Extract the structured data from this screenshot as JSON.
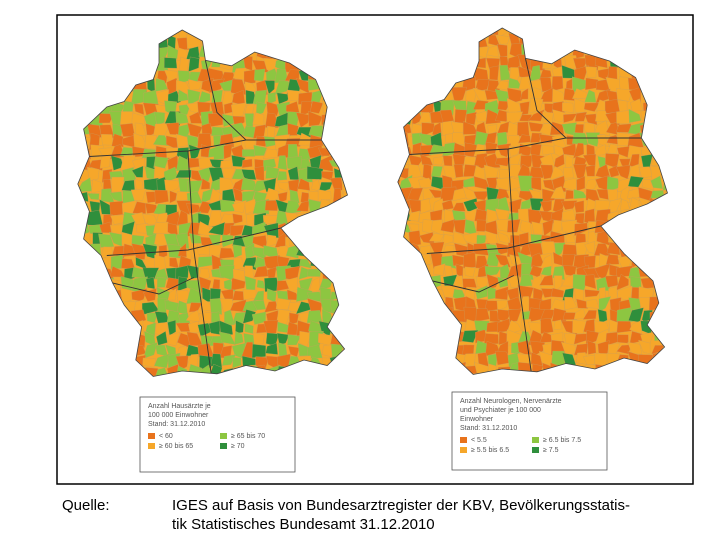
{
  "maps": [
    {
      "legend": {
        "title": [
          "Anzahl Hausärzte je",
          "100 000 Einwohner",
          "Stand: 31.12.2010"
        ],
        "items": [
          {
            "label": "< 60",
            "color": "#e8731c"
          },
          {
            "label": "≥ 60 bis 65",
            "color": "#f6a72a"
          },
          {
            "label": "≥ 65 bis 70",
            "color": "#8dc641"
          },
          {
            "label": "≥ 70",
            "color": "#2f8f3c"
          }
        ]
      }
    },
    {
      "legend": {
        "title": [
          "Anzahl Neurologen, Nervenärzte",
          "und Psychiater je 100 000",
          "Einwohner",
          "Stand: 31.12.2010"
        ],
        "items": [
          {
            "label": "< 5.5",
            "color": "#e8731c"
          },
          {
            "label": "≥ 5.5 bis 6.5",
            "color": "#f6a72a"
          },
          {
            "label": "≥ 6.5 bis 7.5",
            "color": "#8dc641"
          },
          {
            "label": "≥ 7.5",
            "color": "#2f8f3c"
          }
        ]
      }
    }
  ],
  "caption": {
    "label": "Quelle:",
    "lines": [
      "IGES auf Basis von Bundesarztregister der KBV, Bevölkerungsstatis-",
      "tik Statistisches Bundesamt 31.12.2010"
    ]
  }
}
